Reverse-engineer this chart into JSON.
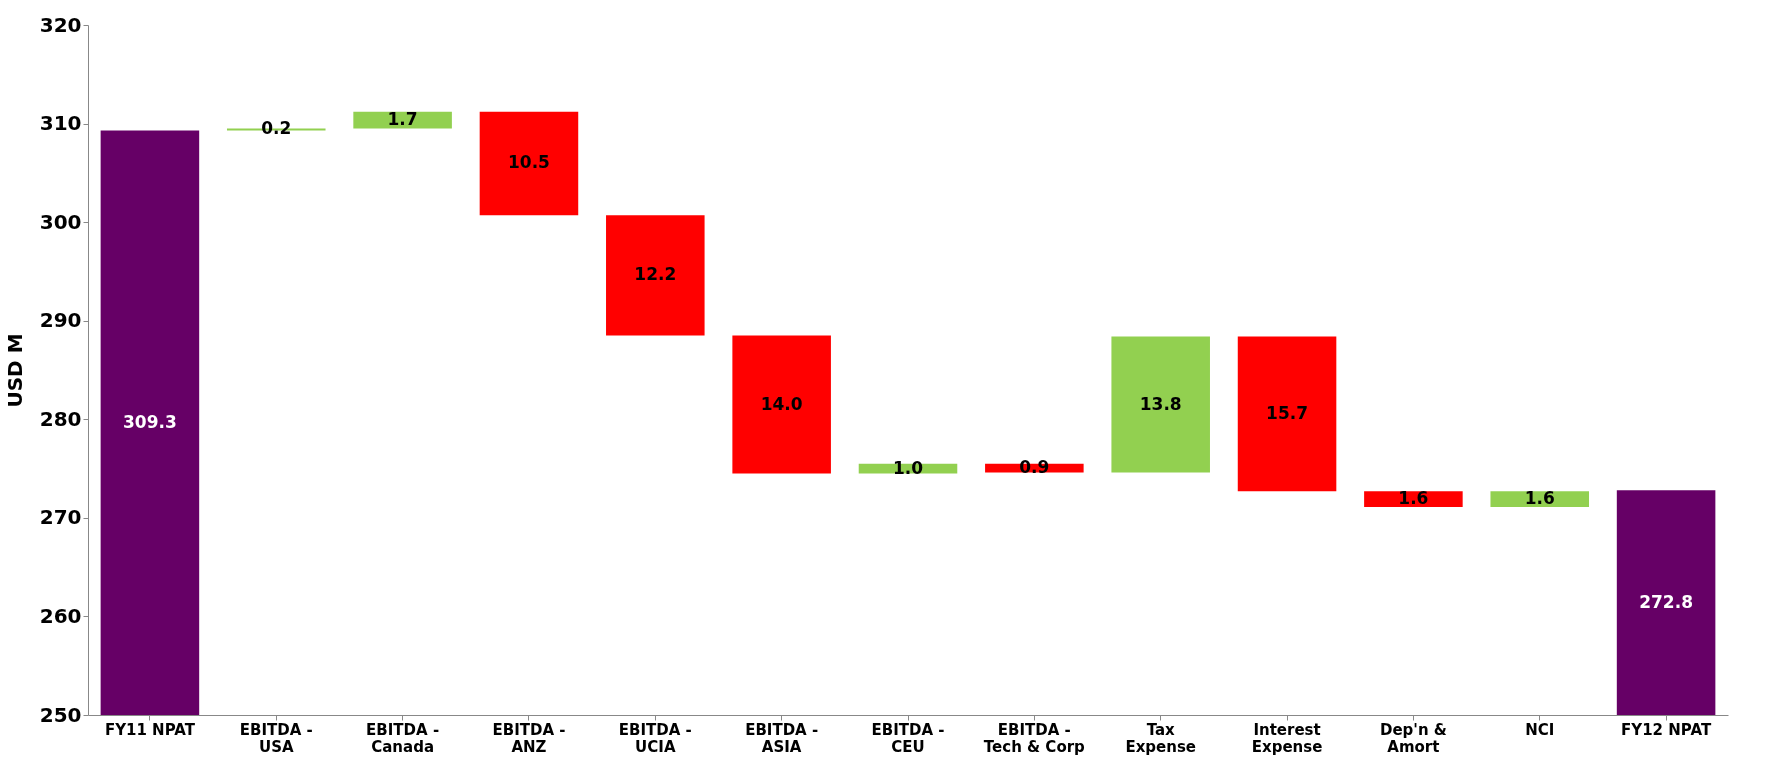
{
  "chart_data": {
    "type": "bar",
    "ylabel": "USD M",
    "categories": [
      "FY11 NPAT",
      "EBITDA -\nUSA",
      "EBITDA -\nCanada",
      "EBITDA -\nANZ",
      "EBITDA -\nUCIA",
      "EBITDA -\nASIA",
      "EBITDA -\nCEU",
      "EBITDA -\nTech & Corp",
      "Tax\nExpense",
      "Interest\nExpense",
      "Dep'n &\nAmort",
      "NCI",
      "FY12 NPAT"
    ],
    "values": [
      309.3,
      0.2,
      1.7,
      -10.5,
      -12.2,
      -14.0,
      1.0,
      -0.9,
      13.8,
      -15.7,
      -1.6,
      1.6,
      272.8
    ],
    "base": [
      null,
      309.3,
      309.5,
      311.2,
      300.7,
      288.5,
      274.5,
      275.5,
      274.6,
      288.4,
      272.7,
      271.1,
      null
    ],
    "colors": [
      "#660066",
      "#92d050",
      "#92d050",
      "#ff0000",
      "#ff0000",
      "#ff0000",
      "#92d050",
      "#ff0000",
      "#92d050",
      "#ff0000",
      "#ff0000",
      "#92d050",
      "#660066"
    ],
    "value_labels": [
      "309.3",
      "0.2",
      "1.7",
      "10.5",
      "12.2",
      "14.0",
      "1.0",
      "0.9",
      "13.8",
      "15.7",
      "1.6",
      "1.6",
      "272.8"
    ],
    "ylim": [
      250,
      320
    ],
    "yticks": [
      250,
      260,
      270,
      280,
      290,
      300,
      310,
      320
    ],
    "grid": false
  }
}
